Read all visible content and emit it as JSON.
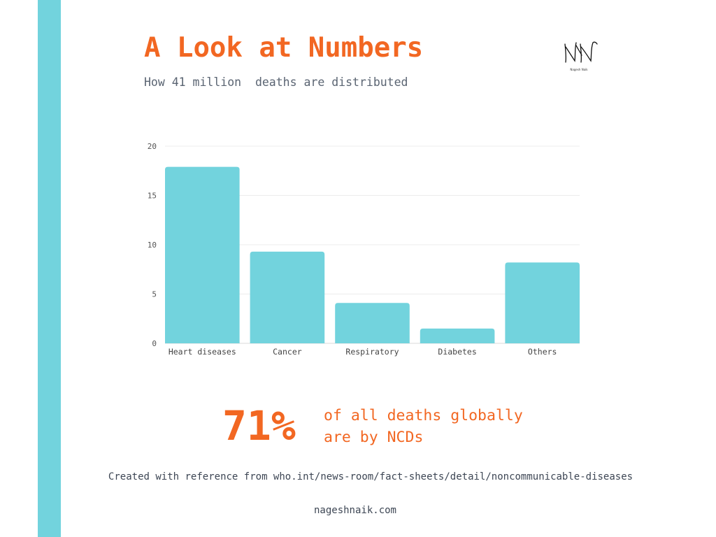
{
  "colors": {
    "accent": "#f26722",
    "bar": "#72d3dd",
    "text": "#3d4654",
    "grid": "#ececec"
  },
  "header": {
    "title": "A Look at Numbers",
    "subtitle": "How 41 million  deaths are distributed"
  },
  "logo": {
    "monogram": "NN",
    "caption": "Nagesh Naik"
  },
  "chart_data": {
    "type": "bar",
    "categories": [
      "Heart diseases",
      "Cancer",
      "Respiratory",
      "Diabetes",
      "Others"
    ],
    "values": [
      17.9,
      9.3,
      4.1,
      1.5,
      8.2
    ],
    "title": "",
    "xlabel": "",
    "ylabel": "",
    "ylim": [
      0,
      20
    ],
    "yticks": [
      0,
      5,
      10,
      15,
      20
    ],
    "grid": true,
    "legend": "none"
  },
  "stat": {
    "value": "71%",
    "line1": "of all deaths globally",
    "line2": "are by NCDs"
  },
  "footer": {
    "reference": "Created with reference from who.int/news-room/fact-sheets/detail/noncommunicable-diseases",
    "url": "nageshnaik.com"
  }
}
